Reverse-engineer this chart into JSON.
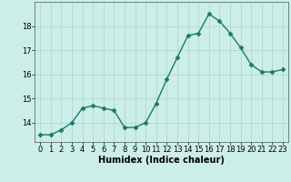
{
  "x": [
    0,
    1,
    2,
    3,
    4,
    5,
    6,
    7,
    8,
    9,
    10,
    11,
    12,
    13,
    14,
    15,
    16,
    17,
    18,
    19,
    20,
    21,
    22,
    23
  ],
  "y": [
    13.5,
    13.5,
    13.7,
    14.0,
    14.6,
    14.7,
    14.6,
    14.5,
    13.8,
    13.8,
    14.0,
    14.8,
    15.8,
    16.7,
    17.6,
    17.7,
    18.5,
    18.2,
    17.7,
    17.1,
    16.4,
    16.1,
    16.1,
    16.2
  ],
  "line_color": "#1a7a6a",
  "marker_color": "#1a7a6a",
  "bg_color": "#cceee8",
  "grid_color": "#b0d8d0",
  "xlabel": "Humidex (Indice chaleur)",
  "ylim": [
    13.2,
    19.0
  ],
  "xlim": [
    -0.5,
    23.5
  ],
  "yticks": [
    14,
    15,
    16,
    17,
    18
  ],
  "xticks": [
    0,
    1,
    2,
    3,
    4,
    5,
    6,
    7,
    8,
    9,
    10,
    11,
    12,
    13,
    14,
    15,
    16,
    17,
    18,
    19,
    20,
    21,
    22,
    23
  ],
  "xlabel_fontsize": 7,
  "tick_fontsize": 6,
  "line_width": 1.0,
  "marker_size": 2.5
}
